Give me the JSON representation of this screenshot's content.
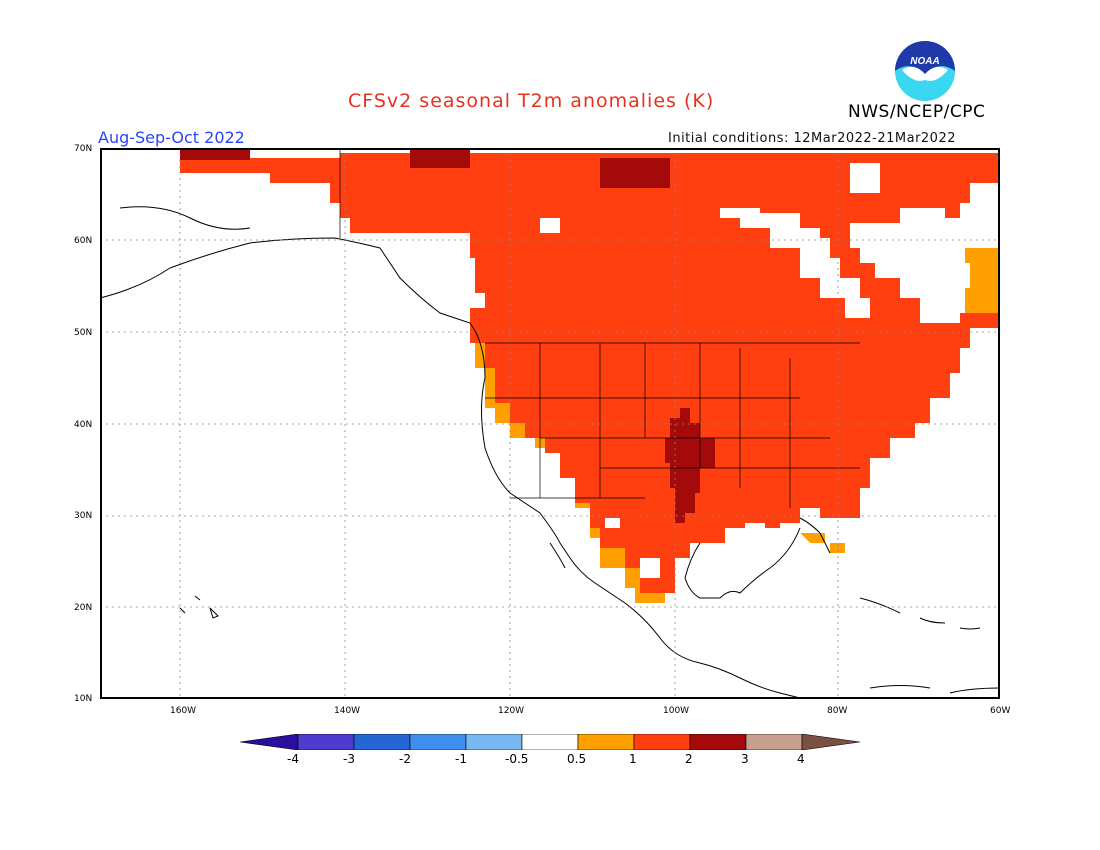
{
  "header": {
    "title": "CFSv2 seasonal T2m anomalies (K)",
    "period": "Aug-Sep-Oct 2022",
    "initial_conditions": "Initial conditions: 12Mar2022-21Mar2022",
    "agency": "NWS/NCEP/CPC",
    "logo_text": "NOAA"
  },
  "axes": {
    "lat_labels": [
      "70N",
      "60N",
      "50N",
      "40N",
      "30N",
      "20N",
      "10N"
    ],
    "lon_labels": [
      "160W",
      "140W",
      "120W",
      "100W",
      "80W",
      "60W"
    ]
  },
  "colorbar": {
    "labels": [
      "-4",
      "-3",
      "-2",
      "-1",
      "-0.5",
      "0.5",
      "1",
      "2",
      "3",
      "4"
    ],
    "colors": [
      "#2a0f9e",
      "#4d3ccf",
      "#2466d4",
      "#3f8eee",
      "#7ab8f3",
      "#ffffff",
      "#ff9f00",
      "#ff3f10",
      "#a50a0a",
      "#c8a090",
      "#7a5040"
    ]
  },
  "colors": {
    "anom_05_1": "#ff9f00",
    "anom_1_2": "#ff3f10",
    "anom_2_3": "#a50a0a",
    "title": "#e8321e",
    "period": "#2a45ff"
  }
}
